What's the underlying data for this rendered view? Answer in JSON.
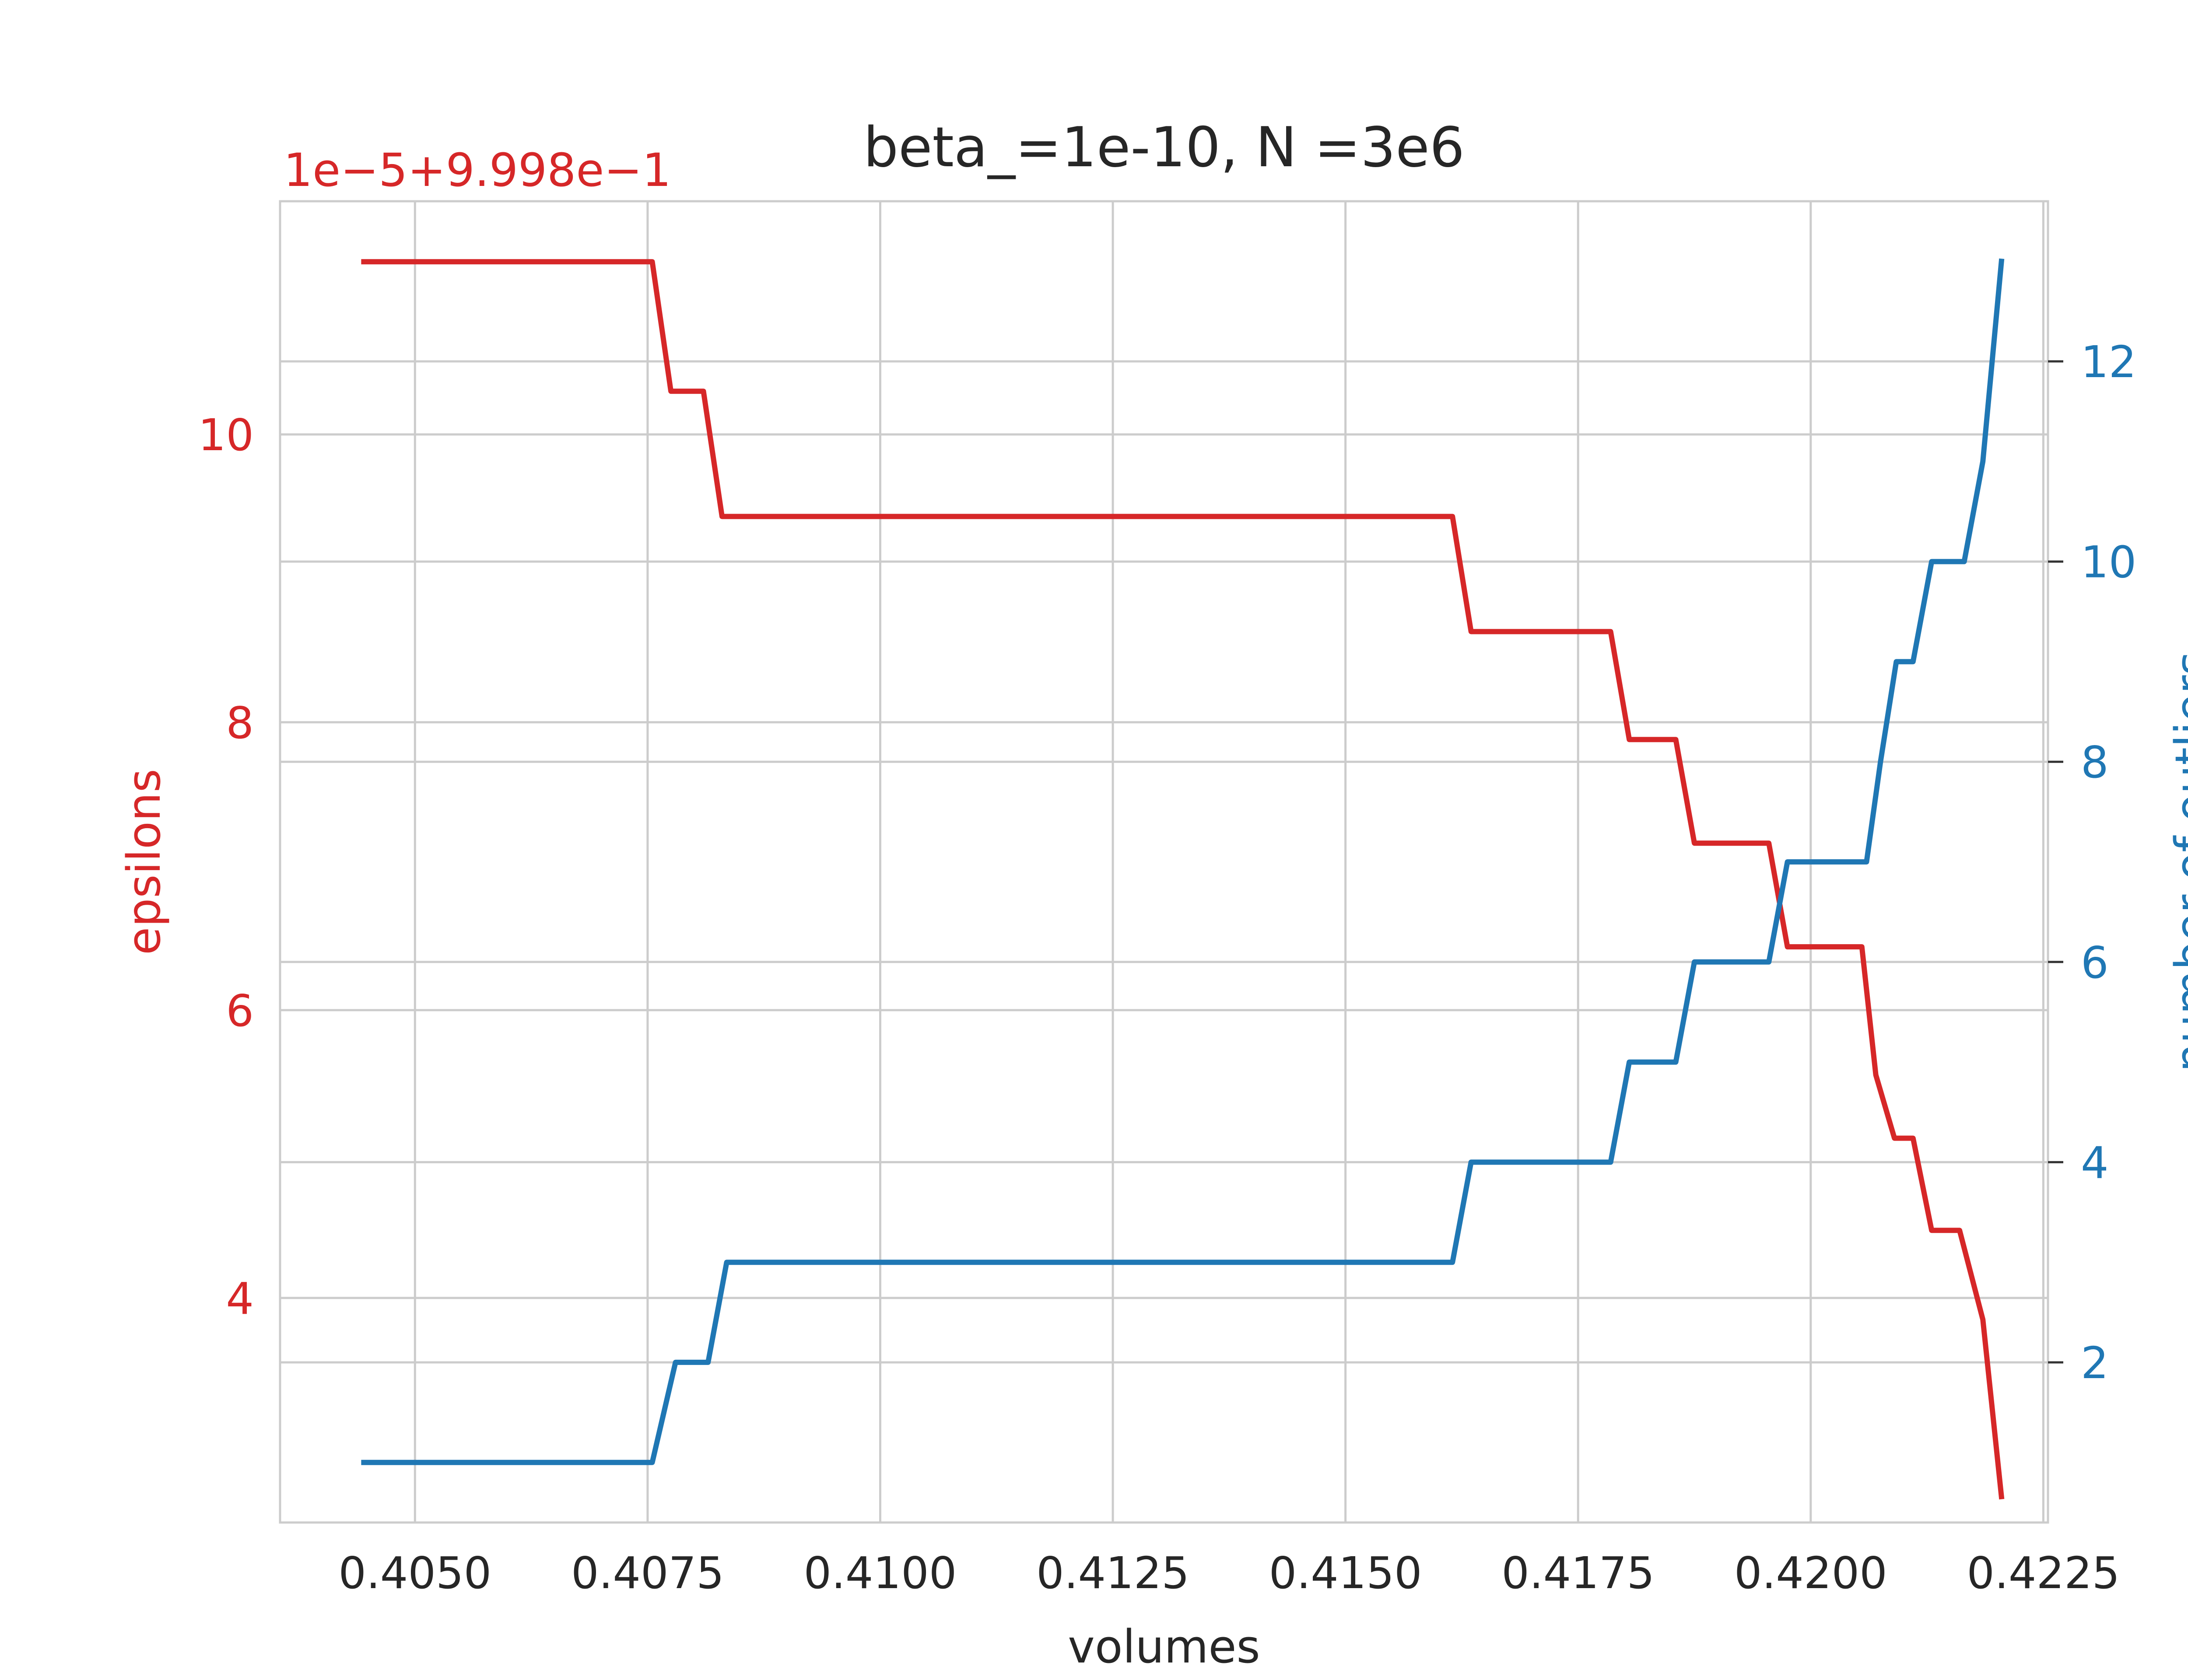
{
  "chart_data": {
    "type": "line",
    "title": "beta_=1e-10, N =3e6",
    "xlabel": "volumes",
    "y_left_label": "epsilons",
    "y_right_label": "number of outliers",
    "y_left_offset": "1e−5+9.998e−1",
    "xlim": [
      0.40355,
      0.42255
    ],
    "ylim_left": [
      2.44,
      11.62
    ],
    "ylim_right": [
      0.4,
      13.6
    ],
    "x_ticks": [
      0.405,
      0.4075,
      0.41,
      0.4125,
      0.415,
      0.4175,
      0.42,
      0.4225
    ],
    "x_tick_labels": [
      "0.4050",
      "0.4075",
      "0.4100",
      "0.4125",
      "0.4150",
      "0.4175",
      "0.4200",
      "0.4225"
    ],
    "y_left_ticks": [
      4,
      6,
      8,
      10
    ],
    "y_left_tick_labels": [
      "4",
      "6",
      "8",
      "10"
    ],
    "y_right_ticks": [
      2,
      4,
      6,
      8,
      10,
      12
    ],
    "y_right_tick_labels": [
      "2",
      "4",
      "6",
      "8",
      "10",
      "12"
    ],
    "grid": true,
    "colors": {
      "epsilons": "#d62728",
      "outliers": "#1f77b4",
      "text": "#262626",
      "grid": "#cccccc"
    },
    "series": [
      {
        "axis": "left",
        "color": "#d62728",
        "x": [
          0.40445,
          0.40755,
          0.40775,
          0.4081,
          0.4083,
          0.41615,
          0.41635,
          0.41785,
          0.41805,
          0.41855,
          0.41875,
          0.41955,
          0.41975,
          0.42055,
          0.4207,
          0.4209,
          0.4211,
          0.4213,
          0.4216,
          0.42185,
          0.42205
        ],
        "values": [
          11.2,
          11.2,
          10.3,
          10.3,
          9.43,
          9.43,
          8.63,
          8.63,
          7.88,
          7.88,
          7.16,
          7.16,
          6.44,
          6.44,
          5.55,
          5.11,
          5.11,
          4.47,
          4.47,
          3.85,
          2.62
        ]
      },
      {
        "axis": "right",
        "color": "#1f77b4",
        "x": [
          0.40445,
          0.40755,
          0.4078,
          0.40815,
          0.40835,
          0.41615,
          0.41635,
          0.41785,
          0.41805,
          0.41855,
          0.41875,
          0.41955,
          0.41975,
          0.4206,
          0.42075,
          0.42092,
          0.4211,
          0.4213,
          0.42165,
          0.42185,
          0.42205
        ],
        "values": [
          1,
          1,
          2,
          2,
          3,
          3,
          4,
          4,
          5,
          5,
          6,
          6,
          7,
          7,
          8,
          9,
          9,
          10,
          10,
          11,
          13
        ]
      }
    ]
  }
}
